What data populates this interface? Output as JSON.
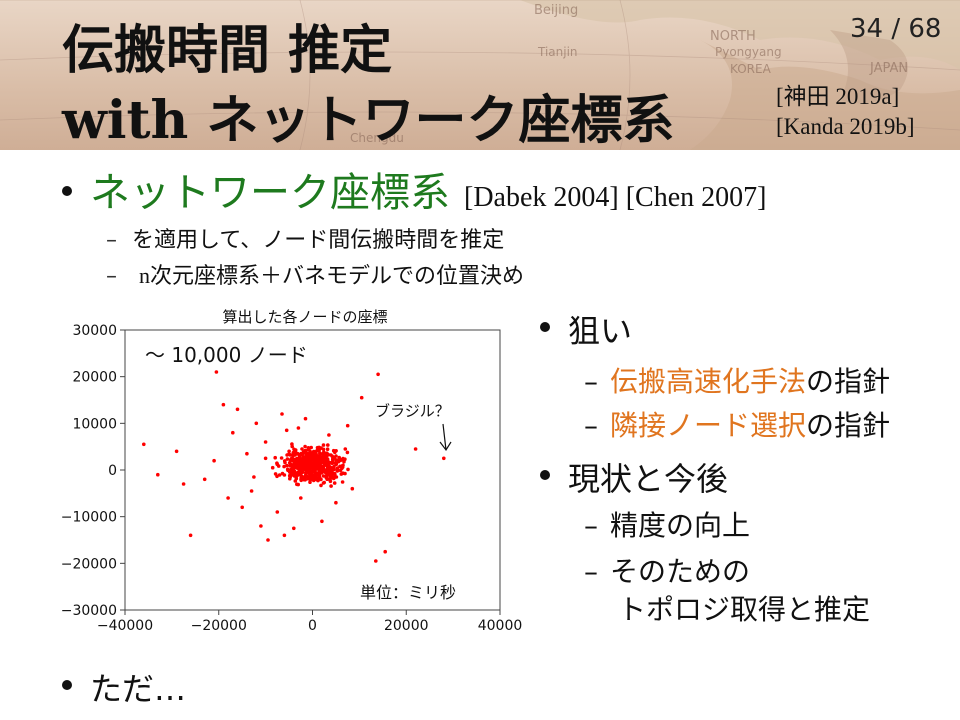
{
  "header": {
    "title_line1": "伝搬時間 推定",
    "title_line2_latin": "with",
    "title_line2_jp": "ネットワーク座標系",
    "page_number": "34 / 68",
    "refs": [
      "[神田 2019a]",
      "[Kanda 2019b]"
    ],
    "map_labels": [
      "Beijing",
      "NORTH",
      "Pyongyang",
      "KOREA",
      "JAPAN",
      "Tianjin",
      "Chengdu"
    ]
  },
  "bullet_main": {
    "label": "ネットワーク座標系",
    "refs": "[Dabek 2004] [Chen 2007]",
    "subs": [
      {
        "text": "を適用して、ノード間伝搬時間を推定"
      },
      {
        "text_n": "n",
        "text": "次元座標系＋バネモデルでの位置決め"
      }
    ]
  },
  "right": {
    "aim_label": "狙い",
    "aim_subs": [
      {
        "highlight": "伝搬高速化手法",
        "suffix": "の指針"
      },
      {
        "highlight": "隣接ノード選択",
        "suffix": "の指針"
      }
    ],
    "status_label": "現状と今後",
    "status_subs": [
      "精度の向上",
      "そのための",
      "トポロジ取得と推定"
    ]
  },
  "bottom_bullet": "ただ…",
  "chart_data": {
    "type": "scatter",
    "title": "算出した各ノードの座標",
    "annotation_count": "～ 10,000 ノード",
    "annotation_brazil": "ブラジル？",
    "annotation_unit": "単位：ミリ秒",
    "xlim": [
      -40000,
      40000
    ],
    "ylim": [
      -30000,
      30000
    ],
    "x_ticks": [
      "−40000",
      "−20000",
      "0",
      "20000",
      "40000"
    ],
    "x_tick_values": [
      -40000,
      -20000,
      0,
      20000,
      40000
    ],
    "y_ticks": [
      "30000",
      "20000",
      "10000",
      "0",
      "−10000",
      "−20000",
      "−30000"
    ],
    "y_tick_values": [
      30000,
      20000,
      10000,
      0,
      -10000,
      -20000,
      -30000
    ],
    "color": "#ff0000",
    "points_outliers": [
      {
        "x": -36000,
        "y": 5500
      },
      {
        "x": -29000,
        "y": 4000
      },
      {
        "x": -27500,
        "y": -3000
      },
      {
        "x": -26000,
        "y": -14000
      },
      {
        "x": -23000,
        "y": -2000
      },
      {
        "x": -20500,
        "y": 21000
      },
      {
        "x": -19000,
        "y": 14000
      },
      {
        "x": -21000,
        "y": 2000
      },
      {
        "x": -18000,
        "y": -6000
      },
      {
        "x": -17000,
        "y": 8000
      },
      {
        "x": -16000,
        "y": 13000
      },
      {
        "x": -15000,
        "y": -8000
      },
      {
        "x": -14000,
        "y": 3500
      },
      {
        "x": -13000,
        "y": -4500
      },
      {
        "x": -12000,
        "y": 10000
      },
      {
        "x": -11000,
        "y": -12000
      },
      {
        "x": -10000,
        "y": 6000
      },
      {
        "x": -9500,
        "y": -15000
      },
      {
        "x": -8500,
        "y": 500
      },
      {
        "x": -7500,
        "y": -9000
      },
      {
        "x": -6500,
        "y": 12000
      },
      {
        "x": -6000,
        "y": -14000
      },
      {
        "x": -5000,
        "y": 4000
      },
      {
        "x": -4000,
        "y": -12500
      },
      {
        "x": -3000,
        "y": 9000
      },
      {
        "x": -2500,
        "y": -6000
      },
      {
        "x": -1500,
        "y": 11000
      },
      {
        "x": 2000,
        "y": -11000
      },
      {
        "x": 3500,
        "y": 7500
      },
      {
        "x": 5000,
        "y": -7000
      },
      {
        "x": 6500,
        "y": 1000
      },
      {
        "x": 7500,
        "y": 9500
      },
      {
        "x": 8500,
        "y": -4000
      },
      {
        "x": 10500,
        "y": 15500
      },
      {
        "x": 14000,
        "y": 20500
      },
      {
        "x": 13500,
        "y": -19500
      },
      {
        "x": 15500,
        "y": -17500
      },
      {
        "x": 18500,
        "y": -14000
      },
      {
        "x": 22000,
        "y": 4500
      },
      {
        "x": 28000,
        "y": 2500
      },
      {
        "x": -33000,
        "y": -1000
      },
      {
        "x": -12500,
        "y": -1500
      },
      {
        "x": -10000,
        "y": 2500
      },
      {
        "x": 7000,
        "y": 4500
      },
      {
        "x": -5500,
        "y": 8500
      }
    ],
    "cluster": {
      "center_x": 0,
      "center_y": 1000,
      "spread_x": 6000,
      "spread_y": 3500,
      "count": 520
    }
  }
}
